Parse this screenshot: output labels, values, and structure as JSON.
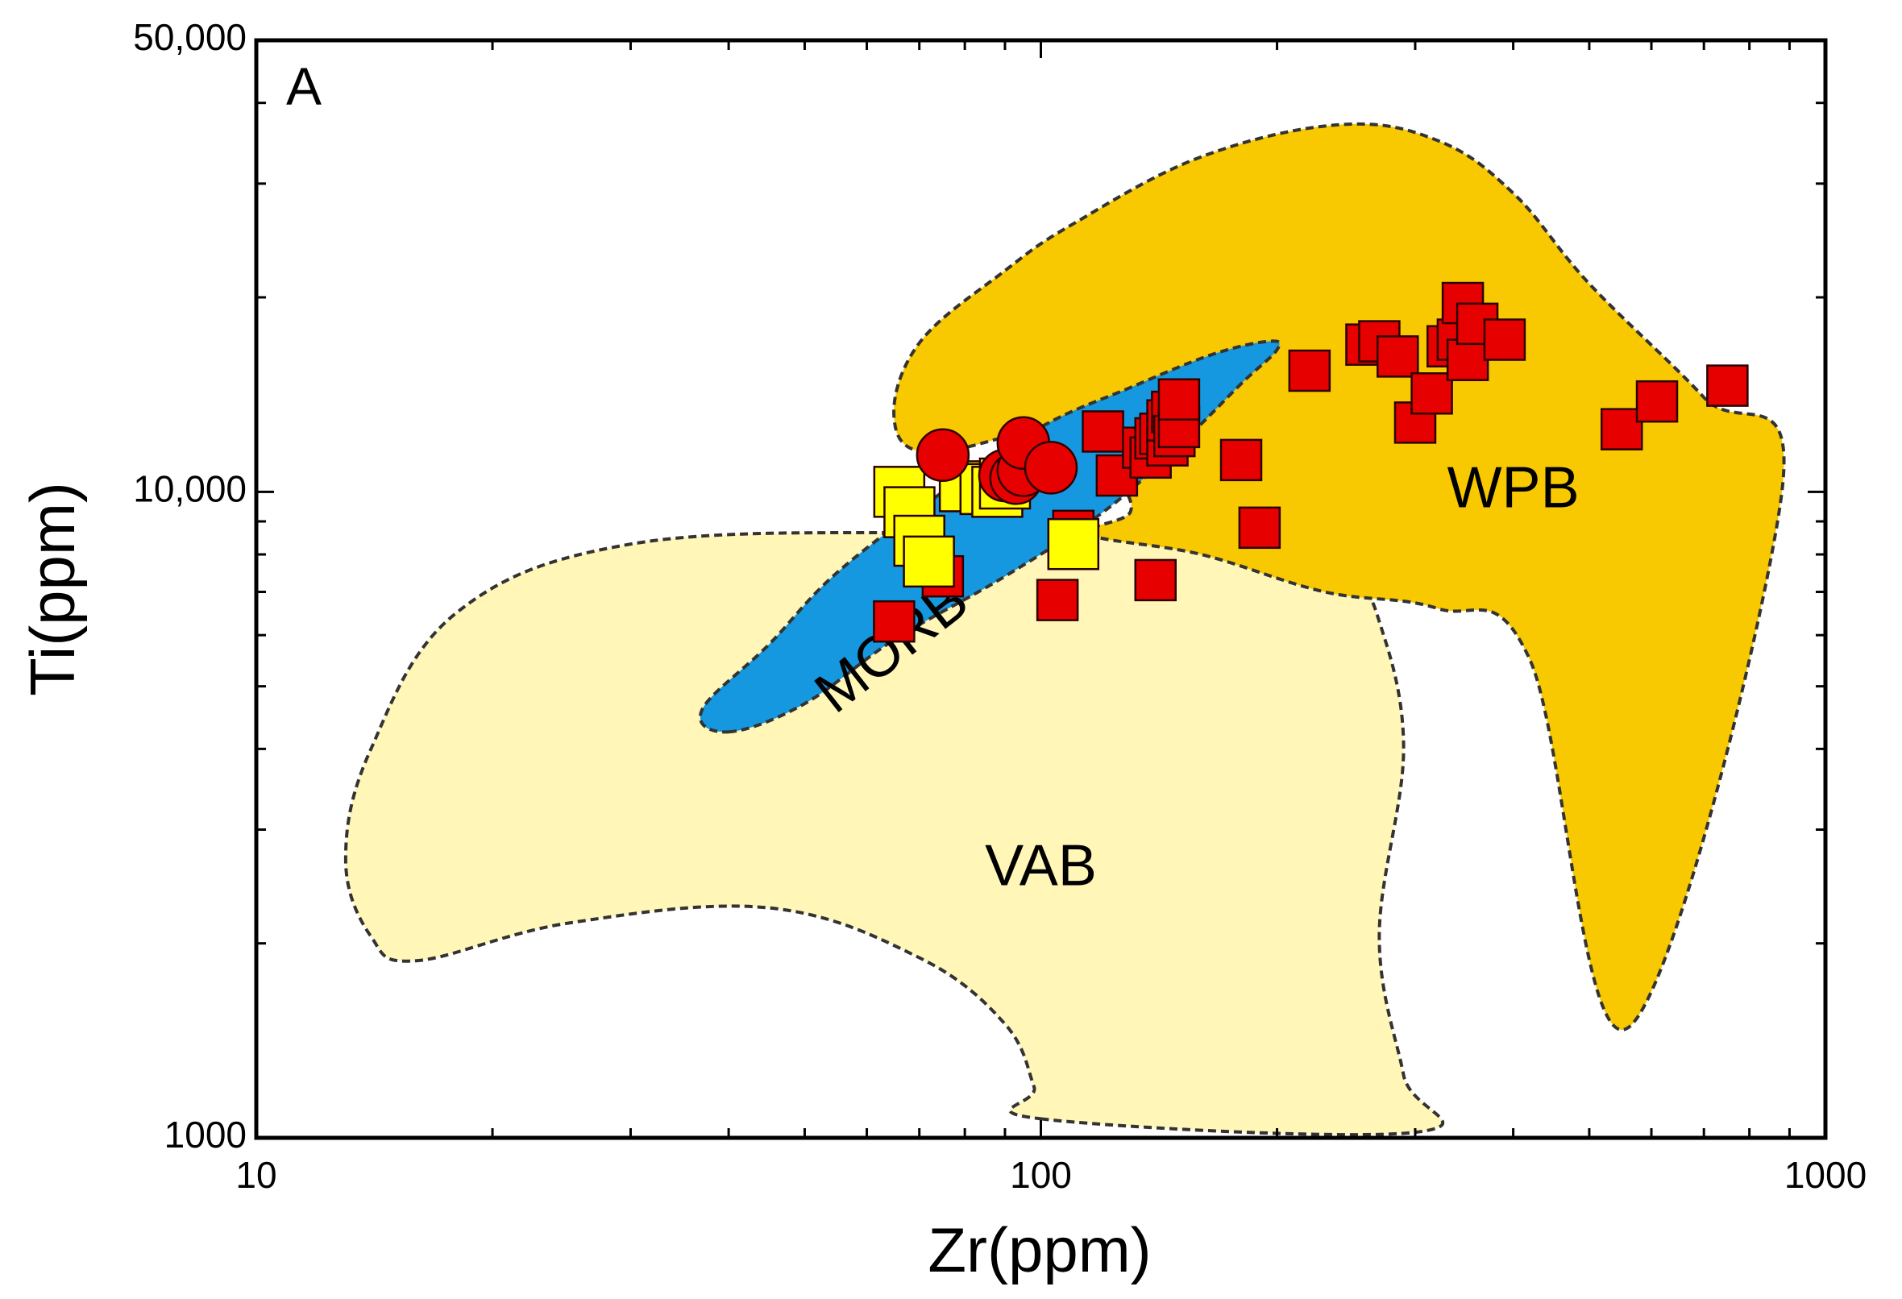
{
  "chart_data": {
    "type": "scatter",
    "panel_label": "A",
    "xlabel": "Zr(ppm)",
    "ylabel": "Ti(ppm)",
    "x_scale": "log",
    "y_scale": "log",
    "xlim": [
      10,
      1000
    ],
    "ylim": [
      1000,
      50000
    ],
    "x_ticks": [
      {
        "value": 10,
        "label": "10"
      },
      {
        "value": 100,
        "label": "100"
      },
      {
        "value": 1000,
        "label": "1000"
      }
    ],
    "y_ticks": [
      {
        "value": 1000,
        "label": "1000"
      },
      {
        "value": 10000,
        "label": "10,000"
      },
      {
        "value": 50000,
        "label": "50,000"
      }
    ],
    "fields": [
      {
        "name": "VAB",
        "label": "VAB",
        "color": "#fff6b8",
        "label_at": [
          100,
          2600
        ],
        "boundary": [
          [
            100,
            1070
          ],
          [
            300,
            1020
          ],
          [
            290,
            1250
          ],
          [
            270,
            2050
          ],
          [
            290,
            4000
          ],
          [
            270,
            6300
          ],
          [
            250,
            7100
          ],
          [
            200,
            7650
          ],
          [
            135,
            8450
          ],
          [
            70,
            8650
          ],
          [
            30,
            8300
          ],
          [
            18,
            6500
          ],
          [
            14,
            4000
          ],
          [
            13,
            2700
          ],
          [
            14,
            2050
          ],
          [
            16,
            1880
          ],
          [
            25,
            2150
          ],
          [
            45,
            2270
          ],
          [
            70,
            1900
          ],
          [
            90,
            1500
          ],
          [
            98,
            1200
          ]
        ]
      },
      {
        "name": "WPB",
        "label": "WPB",
        "color": "#f8c800",
        "label_at": [
          400,
          10000
        ],
        "boundary": [
          [
            115,
            8600
          ],
          [
            160,
            8000
          ],
          [
            230,
            7000
          ],
          [
            320,
            6600
          ],
          [
            420,
            5500
          ],
          [
            560,
            1480
          ],
          [
            880,
            10000
          ],
          [
            700,
            14000
          ],
          [
            500,
            21000
          ],
          [
            400,
            29000
          ],
          [
            320,
            35000
          ],
          [
            240,
            37000
          ],
          [
            160,
            33000
          ],
          [
            110,
            26000
          ],
          [
            90,
            22000
          ],
          [
            70,
            17000
          ],
          [
            65,
            13000
          ],
          [
            72,
            11500
          ],
          [
            100,
            12500
          ],
          [
            120,
            12300
          ],
          [
            125,
            10700
          ],
          [
            130,
            9300
          ]
        ]
      },
      {
        "name": "MORB",
        "label": "MORB",
        "color": "#1598e0",
        "label_at": [
          65,
          5700
        ],
        "label_rotation": -38,
        "boundary": [
          [
            40,
            4250
          ],
          [
            50,
            4700
          ],
          [
            65,
            5900
          ],
          [
            90,
            7400
          ],
          [
            120,
            9300
          ],
          [
            150,
            11800
          ],
          [
            180,
            14700
          ],
          [
            200,
            16600
          ],
          [
            195,
            17100
          ],
          [
            165,
            16300
          ],
          [
            130,
            14500
          ],
          [
            100,
            12600
          ],
          [
            75,
            10000
          ],
          [
            55,
            7500
          ],
          [
            45,
            5800
          ],
          [
            37,
            4600
          ]
        ]
      }
    ],
    "series": [
      {
        "name": "red-squares",
        "marker": "square",
        "color": "#e60000",
        "points": [
          [
            65,
            6300
          ],
          [
            73,
            7700
          ],
          [
            75,
            7400
          ],
          [
            105,
            6800
          ],
          [
            110,
            8700
          ],
          [
            120,
            12400
          ],
          [
            125,
            10600
          ],
          [
            135,
            11700
          ],
          [
            138,
            11300
          ],
          [
            140,
            12100
          ],
          [
            140,
            7300
          ],
          [
            142,
            12300
          ],
          [
            145,
            11800
          ],
          [
            145,
            12900
          ],
          [
            147,
            13300
          ],
          [
            148,
            12200
          ],
          [
            150,
            12600
          ],
          [
            150,
            13900
          ],
          [
            180,
            11200
          ],
          [
            190,
            8800
          ],
          [
            220,
            15400
          ],
          [
            260,
            16900
          ],
          [
            270,
            17100
          ],
          [
            285,
            16200
          ],
          [
            300,
            12800
          ],
          [
            315,
            14200
          ],
          [
            330,
            16800
          ],
          [
            340,
            17200
          ],
          [
            345,
            19600
          ],
          [
            350,
            16000
          ],
          [
            360,
            18200
          ],
          [
            390,
            17200
          ],
          [
            550,
            12500
          ],
          [
            610,
            13800
          ],
          [
            750,
            14600
          ]
        ]
      },
      {
        "name": "yellow-squares",
        "marker": "square",
        "color": "#ffff00",
        "points": [
          [
            66,
            10000
          ],
          [
            68,
            9300
          ],
          [
            70,
            8400
          ],
          [
            72,
            7800
          ],
          [
            80,
            10200
          ],
          [
            85,
            10100
          ],
          [
            88,
            10000
          ],
          [
            90,
            10300
          ],
          [
            110,
            8300
          ]
        ]
      },
      {
        "name": "red-circles",
        "marker": "circle",
        "color": "#e60000",
        "points": [
          [
            75,
            11400
          ],
          [
            90,
            10600
          ],
          [
            93,
            10500
          ],
          [
            95,
            10800
          ],
          [
            95,
            11900
          ],
          [
            103,
            10900
          ]
        ]
      }
    ]
  }
}
